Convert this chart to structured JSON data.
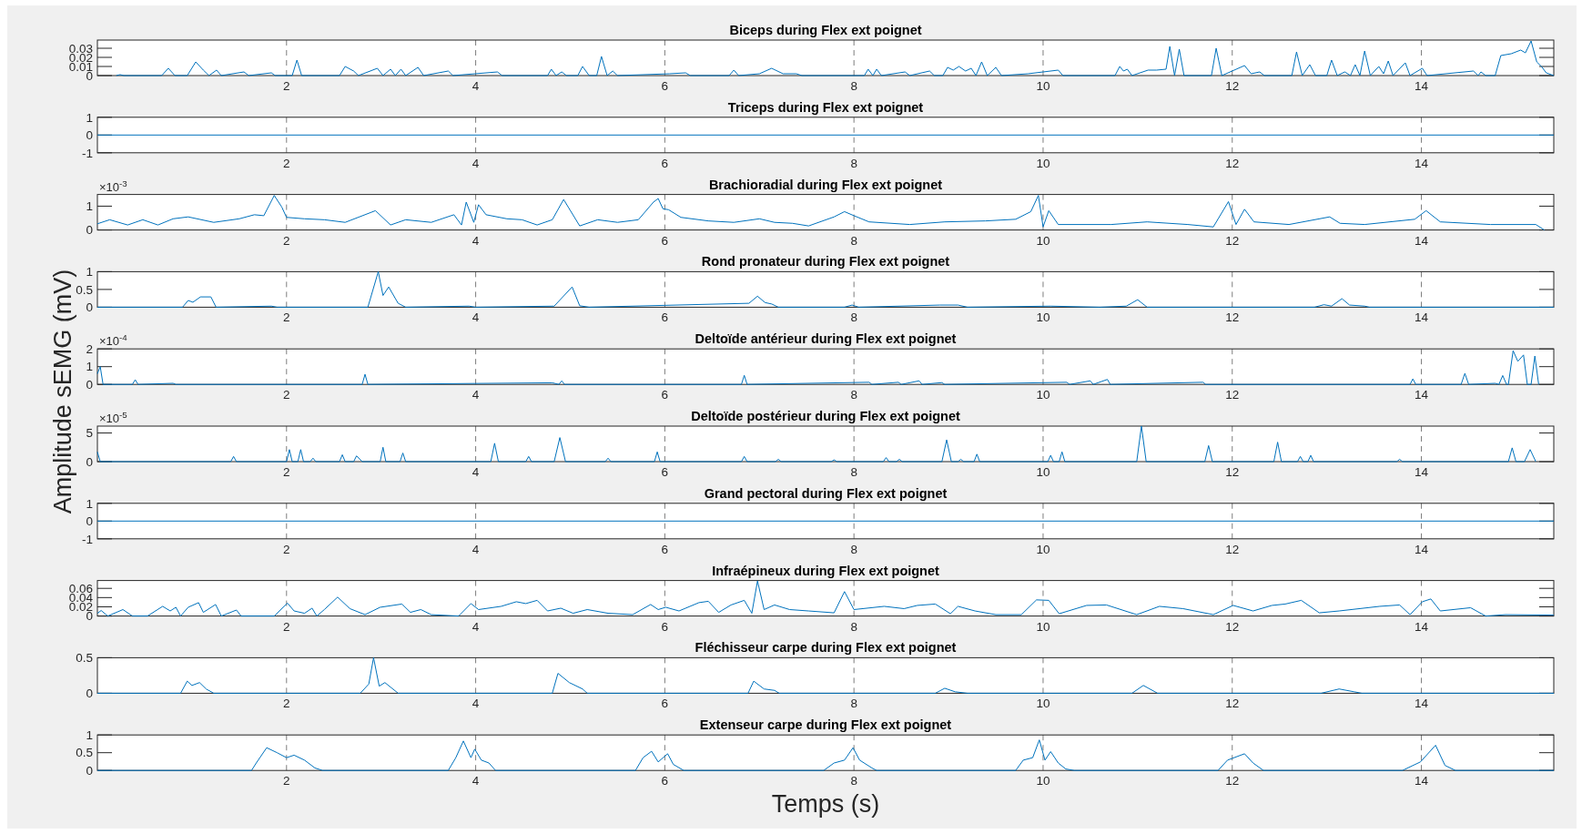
{
  "chart_data": [
    {
      "type": "line",
      "title": "Biceps during Flex ext poignet",
      "color": "#0072bd",
      "grid": "x",
      "xlim": [
        0,
        15.4
      ],
      "xticks": [
        2,
        4,
        6,
        8,
        10,
        12,
        14
      ],
      "ylim": [
        0,
        0.039
      ],
      "yticks": [
        0,
        0.01,
        0.02,
        0.03
      ],
      "x": [
        0.2,
        0.24,
        0.28,
        0.68,
        0.75,
        0.82,
        0.95,
        1.04,
        1.12,
        1.18,
        1.26,
        1.31,
        1.55,
        1.6,
        1.84,
        1.88,
        2.06,
        2.11,
        2.16,
        2.56,
        2.62,
        2.71,
        2.76,
        2.96,
        3.02,
        3.1,
        3.15,
        3.21,
        3.26,
        3.39,
        3.45,
        3.71,
        3.76,
        4.23,
        4.28,
        4.76,
        4.8,
        4.85,
        4.91,
        4.96,
        5.08,
        5.13,
        5.2,
        5.28,
        5.33,
        5.39,
        5.45,
        5.5,
        6.05,
        6.22,
        6.27,
        6.68,
        6.73,
        6.78,
        7.0,
        7.13,
        7.25,
        7.39,
        7.45,
        8.11,
        8.15,
        8.2,
        8.24,
        8.29,
        8.54,
        8.59,
        8.8,
        8.85,
        8.94,
        8.99,
        9.05,
        9.11,
        9.18,
        9.24,
        9.29,
        9.35,
        9.41,
        9.5,
        9.56,
        9.84,
        10.16,
        10.21,
        10.76,
        10.81,
        10.85,
        10.89,
        10.94,
        11.11,
        11.2,
        11.3,
        11.34,
        11.39,
        11.44,
        11.49,
        11.78,
        11.83,
        11.89,
        12.13,
        12.2,
        12.29,
        12.34,
        12.63,
        12.68,
        12.74,
        12.82,
        12.88,
        13.0,
        13.05,
        13.11,
        13.19,
        13.25,
        13.3,
        13.35,
        13.4,
        13.46,
        13.55,
        13.6,
        13.65,
        13.7,
        13.83,
        13.88,
        14.01,
        14.06,
        14.55,
        14.6,
        14.63,
        14.68,
        14.78,
        14.84,
        14.95,
        15.05,
        15.1,
        15.16,
        15.22,
        15.27,
        15.32,
        15.4
      ],
      "values": [
        0,
        0.001,
        0,
        0,
        0.008,
        0,
        0,
        0.015,
        0.006,
        0,
        0.006,
        0,
        0.004,
        0,
        0.003,
        0,
        0,
        0.017,
        0,
        0,
        0.01,
        0.005,
        0,
        0.008,
        0,
        0.007,
        0,
        0.007,
        0,
        0.009,
        0,
        0.005,
        0,
        0.004,
        0,
        0,
        0.007,
        0,
        0.004,
        0,
        0,
        0.01,
        0,
        0,
        0.021,
        0,
        0.005,
        0,
        0.002,
        0.003,
        0,
        0,
        0.006,
        0,
        0.002,
        0.008,
        0.002,
        0.002,
        0,
        0,
        0.007,
        0,
        0.007,
        0,
        0.004,
        0,
        0.005,
        0,
        0,
        0.009,
        0.006,
        0.01,
        0.005,
        0.008,
        0,
        0.015,
        0,
        0.009,
        0,
        0.002,
        0.006,
        0,
        0,
        0.01,
        0.005,
        0.007,
        0,
        0.006,
        0.006,
        0.007,
        0.032,
        0,
        0.029,
        0,
        0,
        0.03,
        0,
        0.011,
        0.002,
        0.004,
        0,
        0,
        0.026,
        0,
        0.012,
        0,
        0,
        0.017,
        0,
        0.004,
        0,
        0.012,
        0,
        0.027,
        0,
        0.01,
        0.002,
        0.016,
        0,
        0.014,
        0,
        0.008,
        0,
        0.005,
        0,
        0.004,
        0,
        0,
        0.022,
        0.024,
        0.028,
        0.025,
        0.038,
        0.015,
        0.01,
        0.003,
        0
      ]
    },
    {
      "type": "line",
      "title": "Triceps during Flex ext poignet",
      "color": "#0072bd",
      "grid": "x",
      "xlim": [
        0,
        15.4
      ],
      "xticks": [
        2,
        4,
        6,
        8,
        10,
        12,
        14
      ],
      "ylim": [
        -1,
        1
      ],
      "yticks": [
        -1,
        0,
        1
      ],
      "x": [
        0,
        15.4
      ],
      "values": [
        0,
        0
      ]
    },
    {
      "type": "line",
      "title": "Brachioradial during Flex ext poignet",
      "color": "#0072bd",
      "grid": "x",
      "xlim": [
        0,
        15.4
      ],
      "xticks": [
        2,
        4,
        6,
        8,
        10,
        12,
        14
      ],
      "ylim": [
        0,
        1.49
      ],
      "yticks": [
        0,
        1
      ],
      "annotations": [
        "×10$^{-3}$"
      ],
      "x": [
        0,
        0.13,
        0.32,
        0.48,
        0.64,
        0.8,
        0.96,
        1.23,
        1.5,
        1.66,
        1.76,
        1.87,
        1.95,
        2,
        2.19,
        2.4,
        2.62,
        2.94,
        3.1,
        3.26,
        3.53,
        3.77,
        3.85,
        3.9,
        3.98,
        4.03,
        4.11,
        4.33,
        4.49,
        4.65,
        4.81,
        4.93,
        5.1,
        5.29,
        5.5,
        5.72,
        5.88,
        5.93,
        5.98,
        6.04,
        6.17,
        6.46,
        6.73,
        7,
        7.16,
        7.35,
        7.52,
        7.79,
        7.9,
        8,
        8.16,
        8.59,
        8.96,
        9.39,
        9.71,
        9.87,
        9.95,
        10,
        10.06,
        10.16,
        10.72,
        11.1,
        11.53,
        11.8,
        11.96,
        12.04,
        12.13,
        12.23,
        12.6,
        13.03,
        13.14,
        13.4,
        13.93,
        14.05,
        14.2,
        14.73,
        15.21,
        15.3
      ],
      "values": [
        0.26,
        0.43,
        0.21,
        0.43,
        0.21,
        0.47,
        0.55,
        0.32,
        0.47,
        0.64,
        0.6,
        1.45,
        0.96,
        0.53,
        0.47,
        0.43,
        0.32,
        0.81,
        0.21,
        0.43,
        0.32,
        0.64,
        0.21,
        1.17,
        0.32,
        1.06,
        0.64,
        0.47,
        0.43,
        0.21,
        0.43,
        1.28,
        0.17,
        0.43,
        0.32,
        0.43,
        1.17,
        1.32,
        0.89,
        0.85,
        0.53,
        0.38,
        0.32,
        0.47,
        0.32,
        0.28,
        0.17,
        0.55,
        0.77,
        0.6,
        0.34,
        0.23,
        0.34,
        0.38,
        0.45,
        0.77,
        1.45,
        0.13,
        0.81,
        0.23,
        0.23,
        0.34,
        0.23,
        0.13,
        1.19,
        0.23,
        0.87,
        0.34,
        0.23,
        0.55,
        0.28,
        0.23,
        0.45,
        0.81,
        0.34,
        0.23,
        0.23,
        0
      ]
    },
    {
      "type": "line",
      "title": "Rond pronateur during Flex ext poignet",
      "color": "#0072bd",
      "grid": "x",
      "xlim": [
        0,
        15.4
      ],
      "xticks": [
        2,
        4,
        6,
        8,
        10,
        12,
        14
      ],
      "ylim": [
        0,
        1
      ],
      "yticks": [
        0,
        0.5,
        1
      ],
      "x": [
        0,
        0.9,
        0.96,
        1.01,
        1.09,
        1.2,
        1.255,
        1.84,
        1.9,
        2.86,
        2.97,
        3.02,
        3.08,
        3.18,
        3.26,
        3.93,
        4,
        4.83,
        5.02,
        5.1,
        5.2,
        6.89,
        6.98,
        7.06,
        7.13,
        7.2,
        7.9,
        7.98,
        8.05,
        8.91,
        9.1,
        9.2,
        10.08,
        10.6,
        10.88,
        11,
        11.1,
        12.87,
        12.97,
        13.05,
        13.16,
        13.24,
        13.4,
        13.45,
        15.4
      ],
      "values": [
        0,
        0,
        0.19,
        0.14,
        0.29,
        0.29,
        0,
        0.03,
        0,
        0,
        1,
        0.33,
        0.57,
        0.11,
        0,
        0.03,
        0,
        0.03,
        0.57,
        0.04,
        0,
        0.11,
        0.31,
        0.13,
        0.09,
        0,
        0,
        0.06,
        0,
        0.06,
        0.06,
        0,
        0.03,
        0,
        0.03,
        0.21,
        0,
        0,
        0.07,
        0.03,
        0.24,
        0.06,
        0.03,
        0,
        0
      ]
    },
    {
      "type": "line",
      "title": "Deltoïde antérieur during Flex ext poignet",
      "color": "#0072bd",
      "grid": "x",
      "xlim": [
        0,
        15.4
      ],
      "xticks": [
        2,
        4,
        6,
        8,
        10,
        12,
        14
      ],
      "ylim": [
        0,
        2
      ],
      "yticks": [
        0,
        1,
        2
      ],
      "annotations": [
        "×10$^{-4}$"
      ],
      "x": [
        0,
        0.03,
        0.06,
        0.37,
        0.4,
        0.43,
        0.8,
        0.83,
        2.8,
        2.83,
        2.86,
        4.81,
        4.88,
        4.91,
        4.94,
        6.81,
        6.84,
        6.87,
        8.16,
        8.19,
        8.47,
        8.5,
        8.69,
        8.72,
        8.93,
        8.96,
        10.25,
        10.28,
        10.5,
        10.53,
        10.68,
        10.71,
        11.69,
        11.72,
        13.88,
        13.91,
        13.94,
        14.42,
        14.46,
        14.5,
        14.78,
        14.82,
        14.86,
        14.9,
        14.92,
        14.97,
        15.02,
        15.08,
        15.12,
        15.16,
        15.2,
        15.24
      ],
      "values": [
        0.6,
        1,
        0,
        0,
        0.26,
        0,
        0.06,
        0,
        0,
        0.57,
        0,
        0.09,
        0,
        0.2,
        0,
        0,
        0.51,
        0,
        0.12,
        0,
        0.12,
        0,
        0.2,
        0,
        0.1,
        0,
        0.12,
        0,
        0.2,
        0,
        0.28,
        0,
        0.12,
        0,
        0,
        0.31,
        0,
        0,
        0.62,
        0,
        0.06,
        0,
        0.5,
        0,
        0,
        1.9,
        1.3,
        1.66,
        0,
        0,
        1.6,
        0
      ]
    },
    {
      "type": "line",
      "title": "Deltoïde postérieur during Flex ext poignet",
      "ylabel": "Amplitude sEMG (mV)",
      "color": "#0072bd",
      "grid": "x",
      "xlim": [
        0,
        15.4
      ],
      "xticks": [
        2,
        4,
        6,
        8,
        10,
        12,
        14
      ],
      "ylim": [
        0,
        6.2
      ],
      "yticks": [
        0,
        5
      ],
      "annotations": [
        "×10$^{-5}$"
      ],
      "x": [
        0,
        0.03,
        1.41,
        1.44,
        1.47,
        2,
        2.03,
        2.06,
        2.12,
        2.15,
        2.18,
        2.25,
        2.28,
        2.31,
        2.56,
        2.59,
        2.62,
        2.71,
        2.74,
        2.8,
        2.99,
        3.02,
        3.05,
        3.2,
        3.23,
        3.26,
        4.16,
        4.2,
        4.24,
        4.53,
        4.56,
        4.59,
        4.83,
        4.89,
        4.95,
        5.37,
        5.4,
        5.43,
        5.89,
        5.92,
        5.95,
        6.81,
        6.84,
        6.87,
        7.17,
        7.2,
        7.23,
        7.76,
        7.79,
        7.82,
        8.31,
        8.34,
        8.37,
        8.45,
        8.48,
        8.51,
        8.93,
        8.98,
        9.03,
        9.1,
        9.13,
        9.16,
        9.27,
        9.3,
        9.33,
        10.05,
        10.08,
        10.11,
        10.17,
        10.2,
        10.23,
        10.99,
        11.04,
        11.09,
        11.71,
        11.75,
        11.79,
        12.44,
        12.48,
        12.52,
        12.69,
        12.72,
        12.75,
        12.8,
        12.83,
        12.86,
        13.74,
        13.77,
        13.8,
        14.92,
        14.96,
        15,
        15.09,
        15.15,
        15.21
      ],
      "values": [
        1.7,
        0,
        0,
        0.9,
        0,
        0,
        2.1,
        0,
        0,
        2.1,
        0,
        0,
        0.6,
        0,
        0,
        1.2,
        0,
        0,
        1,
        0,
        0,
        2.5,
        0,
        0,
        1.5,
        0,
        0,
        3.2,
        0,
        0,
        0.9,
        0,
        0,
        4.2,
        0,
        0,
        0.6,
        0,
        0,
        1.7,
        0,
        0,
        0.9,
        0,
        0,
        0.4,
        0,
        0,
        0.3,
        0,
        0,
        0.7,
        0,
        0,
        0.4,
        0,
        0,
        3.8,
        0,
        0,
        0.4,
        0,
        0,
        1.3,
        0,
        0,
        1.1,
        0,
        0,
        1.7,
        0,
        0,
        6.2,
        0,
        0,
        2.8,
        0,
        0,
        3.4,
        0,
        0,
        0.9,
        0,
        0,
        1.1,
        0,
        0,
        0.4,
        0,
        0,
        2.4,
        0,
        0,
        2.1,
        0
      ]
    },
    {
      "type": "line",
      "title": "Grand pectoral during Flex ext poignet",
      "color": "#0072bd",
      "grid": "x",
      "xlim": [
        0,
        15.4
      ],
      "xticks": [
        2,
        4,
        6,
        8,
        10,
        12,
        14
      ],
      "ylim": [
        -1,
        1
      ],
      "yticks": [
        -1,
        0,
        1
      ],
      "x": [
        0,
        15.4
      ],
      "values": [
        0,
        0
      ]
    },
    {
      "type": "line",
      "title": "Infraépineux during Flex ext poignet",
      "color": "#0072bd",
      "grid": "x",
      "xlim": [
        0,
        15.4
      ],
      "xticks": [
        2,
        4,
        6,
        8,
        10,
        12,
        14
      ],
      "ylim": [
        0,
        0.077
      ],
      "yticks": [
        0,
        0.02,
        0.04,
        0.06
      ],
      "x": [
        0,
        0.04,
        0.11,
        0.27,
        0.37,
        0.53,
        0.69,
        0.77,
        0.83,
        0.88,
        0.96,
        1.07,
        1.12,
        1.25,
        1.31,
        1.47,
        1.52,
        1.87,
        2.01,
        2.08,
        2.19,
        2.27,
        2.32,
        2.4,
        2.54,
        2.67,
        2.83,
        2.99,
        3.22,
        3.31,
        3.42,
        3.53,
        3.82,
        3.95,
        4.03,
        4.27,
        4.43,
        4.53,
        4.65,
        4.76,
        4.9,
        5.03,
        5.18,
        5.4,
        5.66,
        5.85,
        5.93,
        6.01,
        6.15,
        6.36,
        6.46,
        6.57,
        6.7,
        6.84,
        6.92,
        6.98,
        7.05,
        7.16,
        7.32,
        7.52,
        7.79,
        7.9,
        8,
        8.32,
        8.53,
        8.67,
        8.86,
        9.02,
        9.1,
        9.28,
        9.5,
        9.77,
        9.93,
        10.06,
        10.17,
        10.46,
        10.67,
        10.99,
        11.23,
        11.48,
        11.8,
        12.01,
        12.22,
        12.42,
        12.56,
        12.73,
        12.92,
        13.13,
        13.56,
        13.77,
        13.88,
        14.01,
        14.1,
        14.2,
        14.52,
        14.68,
        14.89,
        15.4
      ],
      "values": [
        0.006,
        0.012,
        0,
        0.014,
        0,
        0,
        0.021,
        0.011,
        0.019,
        0,
        0.019,
        0.029,
        0.008,
        0.025,
        0,
        0.013,
        0,
        0,
        0.028,
        0.011,
        0.006,
        0.017,
        0,
        0.014,
        0.041,
        0.016,
        0.003,
        0.019,
        0.026,
        0.008,
        0.014,
        0.003,
        0,
        0.027,
        0.014,
        0.021,
        0.031,
        0.027,
        0.034,
        0.011,
        0.017,
        0.006,
        0.014,
        0.006,
        0.003,
        0.025,
        0.014,
        0.019,
        0.011,
        0.029,
        0.032,
        0.008,
        0.024,
        0.034,
        0.006,
        0.076,
        0.014,
        0.024,
        0.014,
        0.011,
        0.007,
        0.053,
        0.014,
        0.021,
        0.016,
        0.023,
        0.026,
        0.005,
        0.021,
        0.011,
        0.003,
        0.003,
        0.035,
        0.034,
        0.005,
        0.023,
        0.024,
        0.003,
        0.021,
        0.016,
        0.003,
        0.023,
        0.011,
        0.023,
        0.026,
        0.034,
        0.007,
        0.011,
        0.021,
        0.024,
        0.003,
        0.031,
        0.037,
        0.011,
        0.018,
        0,
        0.003,
        0.002
      ]
    },
    {
      "type": "line",
      "title": "Fléchisseur carpe during Flex ext poignet",
      "color": "#0072bd",
      "grid": "x",
      "xlim": [
        0,
        15.4
      ],
      "xticks": [
        2,
        4,
        6,
        8,
        10,
        12,
        14
      ],
      "ylim": [
        0,
        0.5
      ],
      "yticks": [
        0,
        0.5
      ],
      "x": [
        0,
        0.88,
        0.95,
        1,
        1.08,
        1.15,
        1.23,
        2.78,
        2.87,
        2.92,
        2.98,
        3.04,
        3.18,
        4.81,
        4.87,
        4.99,
        5.13,
        5.18,
        6.88,
        6.94,
        7.05,
        7.16,
        7.21,
        8.86,
        8.96,
        9.07,
        9.2,
        10.94,
        11.06,
        11.21,
        12.94,
        13.13,
        13.29,
        13.37,
        15.4
      ],
      "values": [
        0,
        0,
        0.17,
        0.11,
        0.15,
        0.06,
        0,
        0,
        0.13,
        0.5,
        0.1,
        0.15,
        0,
        0,
        0.28,
        0.15,
        0.06,
        0,
        0,
        0.17,
        0.06,
        0.04,
        0,
        0,
        0.07,
        0.02,
        0,
        0,
        0.11,
        0,
        0,
        0.06,
        0.02,
        0,
        0
      ]
    },
    {
      "type": "line",
      "title": "Extenseur carpe during Flex ext poignet",
      "xlabel": "Temps (s)",
      "color": "#0072bd",
      "grid": "x",
      "xlim": [
        0,
        15.4
      ],
      "xticks": [
        2,
        4,
        6,
        8,
        10,
        12,
        14
      ],
      "ylim": [
        0,
        1
      ],
      "yticks": [
        0,
        0.5,
        1
      ],
      "x": [
        0,
        1.63,
        1.68,
        1.79,
        1.9,
        2,
        2.08,
        2.19,
        2.3,
        2.38,
        3.71,
        3.79,
        3.87,
        3.95,
        3.99,
        4.06,
        4.14,
        4.21,
        5.69,
        5.77,
        5.86,
        5.93,
        6.03,
        6.09,
        6.2,
        7.68,
        7.79,
        7.9,
        7.99,
        8.06,
        8.19,
        8.24,
        9.71,
        9.79,
        9.89,
        9.96,
        10.02,
        10.08,
        10.16,
        10.24,
        10.33,
        11.85,
        11.95,
        12.13,
        12.22,
        12.33,
        13.8,
        13.99,
        14.15,
        14.25,
        14.36,
        15.4
      ],
      "values": [
        0,
        0,
        0.21,
        0.64,
        0.5,
        0.36,
        0.43,
        0.29,
        0.07,
        0,
        0,
        0.36,
        0.83,
        0.36,
        0.6,
        0.29,
        0.21,
        0,
        0,
        0.36,
        0.54,
        0.24,
        0.47,
        0.17,
        0,
        0,
        0.21,
        0.29,
        0.64,
        0.29,
        0.07,
        0,
        0,
        0.29,
        0.36,
        0.86,
        0.29,
        0.53,
        0.21,
        0.04,
        0,
        0,
        0.29,
        0.47,
        0.21,
        0,
        0,
        0.24,
        0.71,
        0.14,
        0,
        0
      ]
    }
  ]
}
